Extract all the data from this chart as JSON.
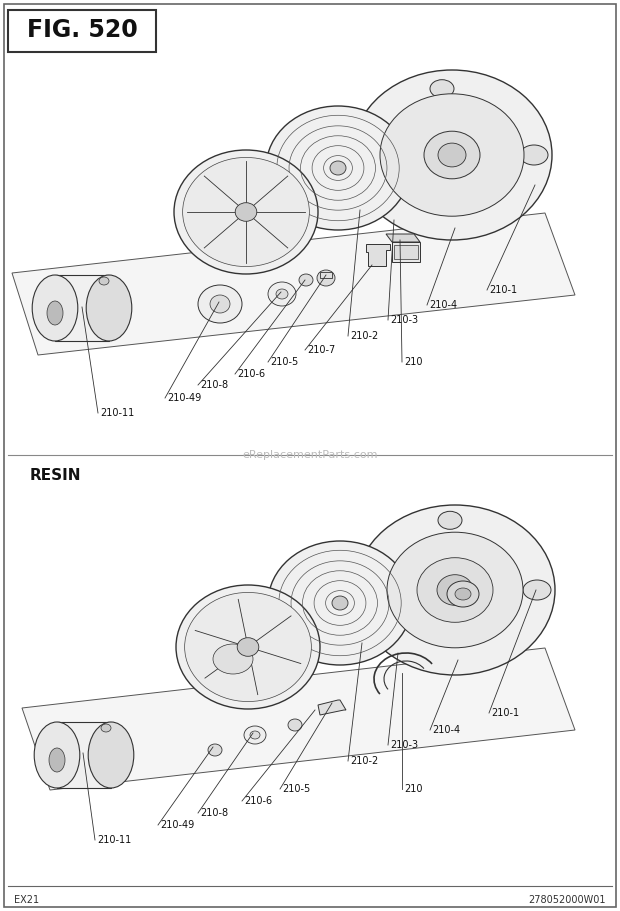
{
  "title": "FIG. 520",
  "fig_width": 6.2,
  "fig_height": 9.11,
  "bg_color": "#ffffff",
  "border_color": "#666666",
  "text_color": "#111111",
  "footer_left": "EX21",
  "footer_right": "278052000W01",
  "watermark": "eReplacementParts.com",
  "section2_label": "RESIN",
  "line_color": "#333333",
  "lw_main": 0.8,
  "lw_thin": 0.5
}
